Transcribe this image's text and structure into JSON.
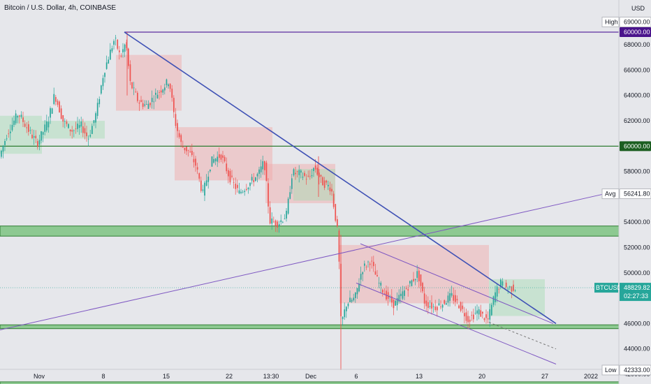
{
  "header": {
    "title": "Bitcoin / U.S. Dollar, 4h, COINBASE",
    "currency": "USD"
  },
  "colors": {
    "up": "#26a69a",
    "down": "#ef5350",
    "trend_blue": "#3f51b5",
    "channel_purple": "#7e57c2",
    "high_line": "#5b2c9f",
    "level_green": "#2e7d32",
    "zone_fill": "#6fbf73",
    "tag_btc": "#26a69a",
    "tag_high": "#4a148c",
    "tag_60k": "#1b5e20"
  },
  "chart_data": {
    "type": "candlestick",
    "symbol": "BTCUSD",
    "interval": "4h",
    "exchange": "COINBASE",
    "ylim": [
      40800,
      70200
    ],
    "x_ticks": [
      "Nov",
      "8",
      "15",
      "22",
      "13:30",
      "Dec",
      "6",
      "13",
      "20",
      "27",
      "2022"
    ],
    "y_ticks": [
      42000,
      44000,
      46000,
      48000,
      50000,
      52000,
      54000,
      56000,
      58000,
      60000,
      62000,
      64000,
      66000,
      68000,
      69000
    ],
    "price_labels": {
      "high_label": "High",
      "high_value": "69000.00",
      "level_value": "60000.00",
      "avg_label": "Avg",
      "avg_value": "56241.80",
      "current_symbol": "BTCUSD",
      "current_value": "48829.82",
      "countdown": "02:27:33",
      "low_label": "Low",
      "low_value": "42333.00"
    },
    "horizontal_levels": [
      69000,
      60000
    ],
    "zones": [
      [
        52900,
        53700
      ],
      [
        45600,
        45900
      ],
      [
        40900,
        41400
      ]
    ],
    "close_path": [
      [
        0,
        59000
      ],
      [
        12,
        61000
      ],
      [
        28,
        62600
      ],
      [
        42,
        61300
      ],
      [
        55,
        60200
      ],
      [
        70,
        61900
      ],
      [
        80,
        64100
      ],
      [
        92,
        62000
      ],
      [
        104,
        61200
      ],
      [
        118,
        61600
      ],
      [
        128,
        60600
      ],
      [
        140,
        62700
      ],
      [
        150,
        65800
      ],
      [
        158,
        67200
      ],
      [
        166,
        68500
      ],
      [
        174,
        67000
      ],
      [
        182,
        68200
      ],
      [
        188,
        65000
      ],
      [
        200,
        63500
      ],
      [
        212,
        63200
      ],
      [
        224,
        64000
      ],
      [
        236,
        64700
      ],
      [
        244,
        65200
      ],
      [
        252,
        62000
      ],
      [
        262,
        60000
      ],
      [
        272,
        59600
      ],
      [
        282,
        58500
      ],
      [
        292,
        56200
      ],
      [
        304,
        58800
      ],
      [
        318,
        59300
      ],
      [
        330,
        57600
      ],
      [
        344,
        56300
      ],
      [
        358,
        57000
      ],
      [
        372,
        57800
      ],
      [
        380,
        58800
      ],
      [
        388,
        54100
      ],
      [
        400,
        53900
      ],
      [
        412,
        54600
      ],
      [
        420,
        57900
      ],
      [
        432,
        57800
      ],
      [
        444,
        57400
      ],
      [
        452,
        58400
      ],
      [
        462,
        57200
      ],
      [
        476,
        56700
      ],
      [
        486,
        52800
      ],
      [
        490,
        45900
      ],
      [
        498,
        47600
      ],
      [
        510,
        48000
      ],
      [
        520,
        50300
      ],
      [
        532,
        51000
      ],
      [
        542,
        49400
      ],
      [
        552,
        48400
      ],
      [
        566,
        47500
      ],
      [
        580,
        48500
      ],
      [
        592,
        49400
      ],
      [
        600,
        50000
      ],
      [
        610,
        47600
      ],
      [
        624,
        47300
      ],
      [
        636,
        47600
      ],
      [
        648,
        48200
      ],
      [
        660,
        47400
      ],
      [
        672,
        46300
      ],
      [
        686,
        47000
      ],
      [
        700,
        46200
      ],
      [
        710,
        48300
      ],
      [
        718,
        49200
      ],
      [
        728,
        48800
      ],
      [
        738,
        48829.82
      ]
    ],
    "spikes": [
      {
        "x": 488,
        "low": 42333,
        "high": 53000
      },
      {
        "x": 456,
        "low": 56000,
        "high": 59200
      },
      {
        "x": 182,
        "low": 64000,
        "high": 69000
      }
    ],
    "trendlines": [
      {
        "name": "descending-trendline",
        "p1": [
          178,
          69000
        ],
        "p2": [
          796,
          46000
        ]
      },
      {
        "name": "rising-trendline",
        "p1": [
          0,
          45500
        ],
        "p2": [
          866,
          56241.8
        ]
      },
      {
        "name": "channel-upper",
        "p1": [
          516,
          52300
        ],
        "p2": [
          792,
          46000
        ]
      },
      {
        "name": "channel-lower",
        "p1": [
          510,
          49200
        ],
        "p2": [
          796,
          42800
        ]
      },
      {
        "name": "channel-mid-dashed",
        "p1": [
          700,
          46100
        ],
        "p2": [
          796,
          44000
        ]
      }
    ],
    "cloud_segments": [
      {
        "x1": 0,
        "x2": 60,
        "top": 62400,
        "bottom": 59400,
        "bearish": false
      },
      {
        "x1": 60,
        "x2": 150,
        "top": 62000,
        "bottom": 60600,
        "bearish": false
      },
      {
        "x1": 166,
        "x2": 260,
        "top": 67200,
        "bottom": 62800,
        "bearish": true
      },
      {
        "x1": 250,
        "x2": 390,
        "top": 61500,
        "bottom": 57300,
        "bearish": true
      },
      {
        "x1": 380,
        "x2": 480,
        "top": 58600,
        "bottom": 55500,
        "bearish": true
      },
      {
        "x1": 420,
        "x2": 480,
        "top": 58200,
        "bottom": 55700,
        "bearish": false
      },
      {
        "x1": 486,
        "x2": 700,
        "top": 52200,
        "bottom": 47600,
        "bearish": true
      },
      {
        "x1": 700,
        "x2": 780,
        "top": 49500,
        "bottom": 46600,
        "bearish": false
      }
    ]
  }
}
